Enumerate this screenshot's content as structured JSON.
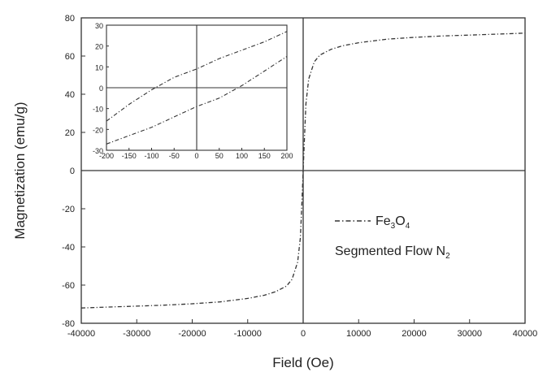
{
  "chart_data": [
    {
      "type": "line",
      "xlabel": "Field (Oe)",
      "ylabel": "Magnetization (emu/g)",
      "xlim": [
        -40000,
        40000
      ],
      "ylim": [
        -80,
        80
      ],
      "xticks": [
        -40000,
        -30000,
        -20000,
        -10000,
        0,
        10000,
        20000,
        30000,
        40000
      ],
      "yticks": [
        -80,
        -60,
        -40,
        -20,
        0,
        20,
        40,
        60,
        80
      ],
      "grid": false,
      "legend": {
        "placement": "right-middle",
        "entry_base": "Fe",
        "entry_sub1": "3",
        "entry_mid": "O",
        "entry_sub2": "4",
        "line2_base": "Segmented Flow N",
        "line2_sub": "2"
      },
      "series": [
        {
          "name": "Fe3O4",
          "line_style": "dash-dot",
          "color": "#333333",
          "x": [
            -40000,
            -35000,
            -30000,
            -25000,
            -20000,
            -15000,
            -10000,
            -7000,
            -5000,
            -3000,
            -2000,
            -1000,
            -500,
            -200,
            0,
            200,
            500,
            1000,
            2000,
            3000,
            5000,
            7000,
            10000,
            15000,
            20000,
            25000,
            30000,
            35000,
            40000
          ],
          "y": [
            -72,
            -71.5,
            -71,
            -70.5,
            -69.8,
            -68.8,
            -67,
            -65.3,
            -63.5,
            -60.5,
            -57,
            -48,
            -35,
            -15,
            0,
            15,
            35,
            48,
            57,
            60.5,
            63.5,
            65.3,
            67,
            68.8,
            69.8,
            70.5,
            71,
            71.5,
            72
          ]
        }
      ]
    },
    {
      "type": "line",
      "role": "inset",
      "xlim": [
        -200,
        200
      ],
      "ylim": [
        -30,
        30
      ],
      "xticks": [
        -200,
        -150,
        -100,
        -50,
        0,
        50,
        100,
        150,
        200
      ],
      "yticks": [
        -30,
        -20,
        -10,
        0,
        10,
        20,
        30
      ],
      "grid": false,
      "series": [
        {
          "line_style": "dash-dot",
          "color": "#333333",
          "x": [
            -200,
            -150,
            -100,
            -50,
            0,
            50,
            100,
            150,
            200
          ],
          "y": [
            -16,
            -8,
            -1,
            5,
            9,
            14,
            18,
            22,
            27
          ]
        },
        {
          "line_style": "dash-dot",
          "color": "#333333",
          "x": [
            -200,
            -150,
            -100,
            -50,
            0,
            50,
            100,
            150,
            200
          ],
          "y": [
            -27,
            -23,
            -19,
            -14,
            -9,
            -5,
            1,
            8,
            15
          ]
        }
      ]
    }
  ]
}
